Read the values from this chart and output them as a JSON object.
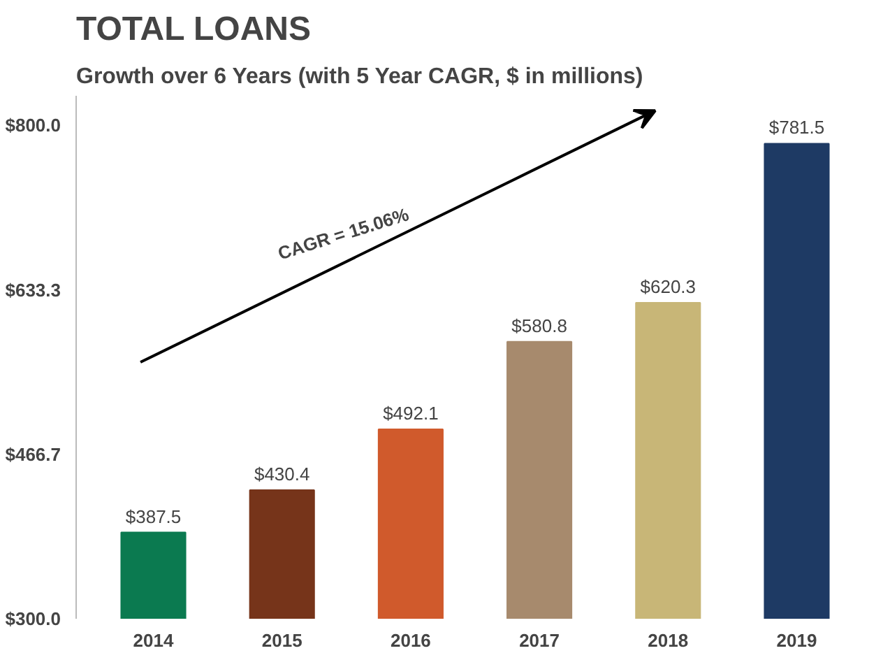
{
  "chart_data": {
    "type": "bar",
    "title": "TOTAL LOANS",
    "subtitle": "Growth over 6 Years (with 5 Year CAGR, $ in millions)",
    "categories": [
      "2014",
      "2015",
      "2016",
      "2017",
      "2018",
      "2019"
    ],
    "values": [
      387.5,
      430.4,
      492.1,
      580.8,
      620.3,
      781.5
    ],
    "colors": [
      "#0b7a50",
      "#76341a",
      "#d05a2c",
      "#a78a6d",
      "#c8b677",
      "#1e3a64"
    ],
    "value_labels": [
      "$387.5",
      "$430.4",
      "$492.1",
      "$580.8",
      "$620.3",
      "$781.5"
    ],
    "ylim": [
      300,
      830
    ],
    "yticks": [
      {
        "value": 300,
        "label": "$300.0"
      },
      {
        "value": 466.7,
        "label": "$466.7"
      },
      {
        "value": 633.3,
        "label": "$633.3"
      },
      {
        "value": 800,
        "label": "$800.0"
      }
    ],
    "grid": false,
    "annotations": [
      "CAGR = 15.06%"
    ]
  }
}
